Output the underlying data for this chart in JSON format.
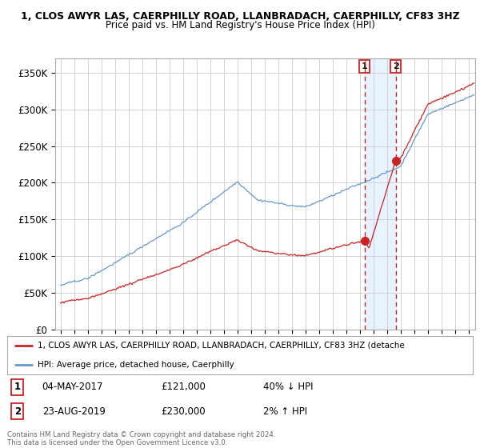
{
  "title": "1, CLOS AWYR LAS, CAERPHILLY ROAD, LLANBRADACH, CAERPHILLY, CF83 3HZ",
  "subtitle": "Price paid vs. HM Land Registry's House Price Index (HPI)",
  "ylabel_ticks": [
    "£0",
    "£50K",
    "£100K",
    "£150K",
    "£200K",
    "£250K",
    "£300K",
    "£350K"
  ],
  "ylabel_values": [
    0,
    50000,
    100000,
    150000,
    200000,
    250000,
    300000,
    350000
  ],
  "ylim": [
    0,
    370000
  ],
  "hpi_color": "#6699cc",
  "property_color": "#cc2222",
  "sale1_date": 2017.35,
  "sale1_price": 121000,
  "sale2_date": 2019.65,
  "sale2_price": 230000,
  "legend_line1": "1, CLOS AWYR LAS, CAERPHILLY ROAD, LLANBRADACH, CAERPHILLY, CF83 3HZ (detache",
  "legend_line2": "HPI: Average price, detached house, Caerphilly",
  "footer": "Contains HM Land Registry data © Crown copyright and database right 2024.\nThis data is licensed under the Open Government Licence v3.0.",
  "background_color": "#ffffff",
  "grid_color": "#cccccc",
  "xlim_start": 1994.6,
  "xlim_end": 2025.5
}
